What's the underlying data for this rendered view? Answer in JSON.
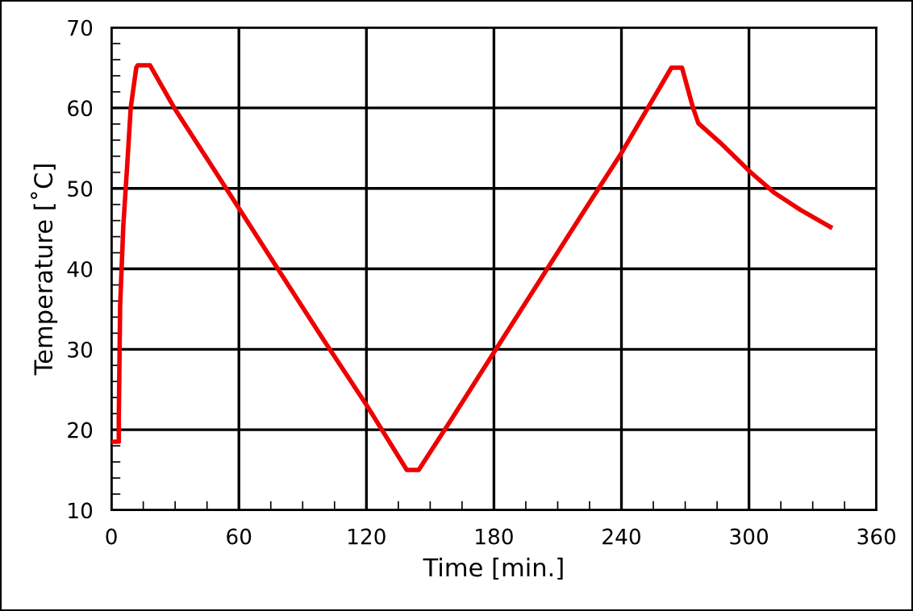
{
  "chart_data": {
    "type": "line",
    "xlabel": "Time [min.]",
    "ylabel": "Temperature [˚C]",
    "xlim": [
      0,
      360
    ],
    "xticks": [
      0,
      60,
      120,
      180,
      240,
      300,
      360
    ],
    "ylim": [
      10,
      70
    ],
    "yticks": [
      10,
      20,
      30,
      40,
      50,
      60,
      70
    ],
    "grid": true,
    "marker": "none",
    "line_style": "solid",
    "series": [
      {
        "color": "#ee0000",
        "x": [
          0,
          3.5,
          3.5,
          4.1,
          5.6,
          7.4,
          9.1,
          11.7,
          12.4,
          18.2,
          29.6,
          54,
          78.3,
          100,
          120,
          139,
          144.6,
          160,
          180,
          200,
          220,
          240,
          263.5,
          268.5,
          273.7,
          276.2,
          286.4,
          300.8,
          311.7,
          324.4,
          338.3
        ],
        "values": [
          18.5,
          18.5,
          21.5,
          35.3,
          45.3,
          52.7,
          60,
          65,
          65.3,
          65.3,
          60,
          50,
          40,
          31.1,
          23.1,
          15,
          15,
          21.3,
          29.6,
          37.9,
          46.2,
          54.4,
          65,
          65,
          60,
          58.1,
          55.7,
          52,
          49.5,
          47.3,
          45.2
        ]
      }
    ]
  }
}
